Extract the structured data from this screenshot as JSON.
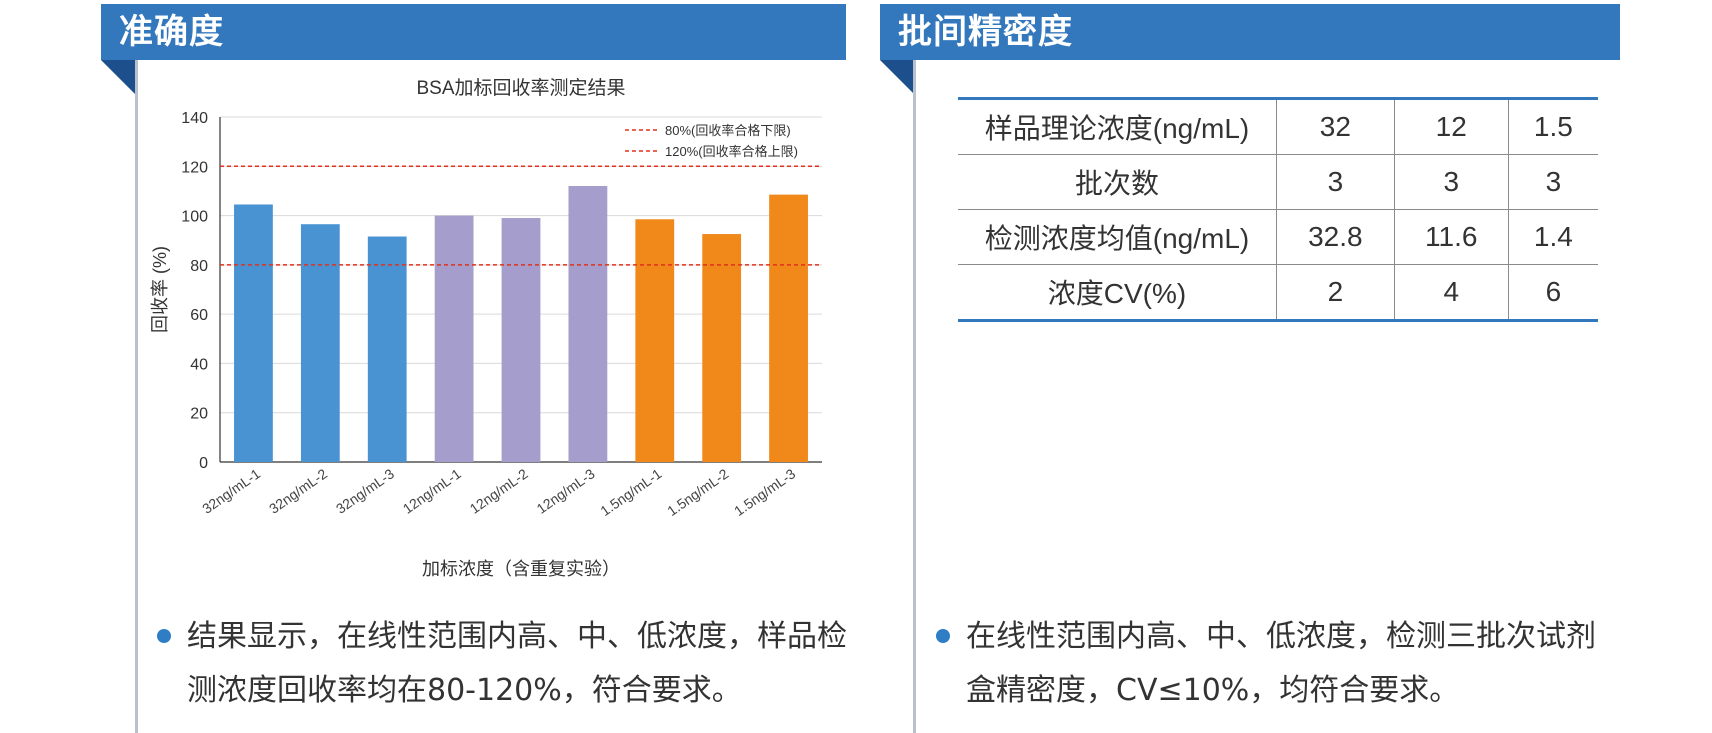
{
  "left_panel": {
    "title": "准确度",
    "note": "结果显示，在线性范围内高、中、低浓度，样品检测浓度回收率均在80-120%，符合要求。",
    "note_line1": "结果显示，在线性范围内高、中、低浓度，样品检",
    "note_line2": "测浓度回收率均在80-120%，符合要求。"
  },
  "right_panel": {
    "title": "批间精密度",
    "note_line1": "在线性范围内高、中、低浓度，检测三批次试剂",
    "note_line2": "盒精密度，CV≤10%，均符合要求。"
  },
  "chart_data": {
    "type": "bar",
    "title": "BSA加标回收率测定结果",
    "xlabel": "加标浓度（含重复实验）",
    "ylabel": "回收率 (%)",
    "ylim": [
      0,
      140
    ],
    "yticks": [
      0,
      20,
      40,
      60,
      80,
      100,
      120,
      140
    ],
    "grid": true,
    "legend_position": "top-right",
    "categories": [
      "32ng/mL-1",
      "32ng/mL-2",
      "32ng/mL-3",
      "12ng/mL-1",
      "12ng/mL-2",
      "12ng/mL-3",
      "1.5ng/mL-1",
      "1.5ng/mL-2",
      "1.5ng/mL-3"
    ],
    "values": [
      104.5,
      96.5,
      91.5,
      100,
      99,
      112,
      98.5,
      92.5,
      108.5
    ],
    "bar_colors": [
      "#4a93d3",
      "#4a93d3",
      "#4a93d3",
      "#a59dcb",
      "#a59dcb",
      "#a59dcb",
      "#f0891a",
      "#f0891a",
      "#f0891a"
    ],
    "reference_lines": [
      {
        "value": 80,
        "label": "80%(回收率合格下限)",
        "color": "#e0321e"
      },
      {
        "value": 120,
        "label": "120%(回收率合格上限)",
        "color": "#e0321e"
      }
    ]
  },
  "precision_table": {
    "rows": [
      [
        "样品理论浓度(ng/mL)",
        "32",
        "12",
        "1.5"
      ],
      [
        "批次数",
        "3",
        "3",
        "3"
      ],
      [
        "检测浓度均值(ng/mL)",
        "32.8",
        "11.6",
        "1.4"
      ],
      [
        "浓度CV(%)",
        "2",
        "4",
        "6"
      ]
    ]
  },
  "colors": {
    "header_blue": "#3377bd",
    "header_fold": "#1d4f8c",
    "bullet": "#2f7dc4"
  }
}
